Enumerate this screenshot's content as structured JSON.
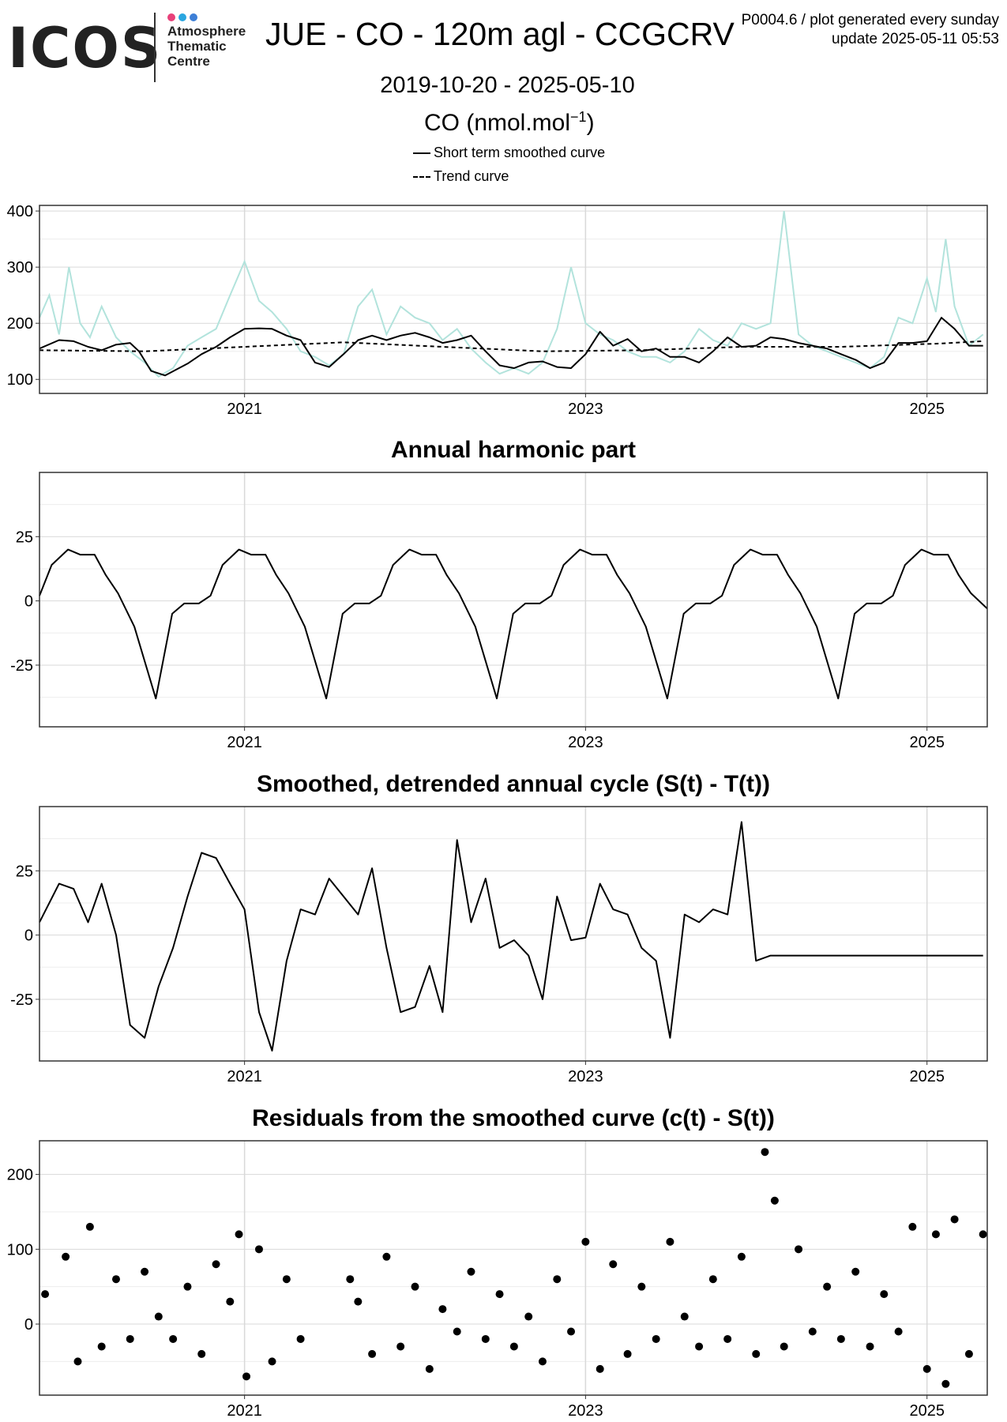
{
  "header": {
    "logo": "ICOS",
    "logo_subtitle": [
      "Atmosphere",
      "Thematic",
      "Centre"
    ],
    "title": "JUE - CO - 120m agl - CCGCRV",
    "info_line1": "P0004.6 / plot generated every sunday",
    "info_line2": "update  2025-05-11 05:53",
    "date_range": "2019-10-20 - 2025-05-10",
    "unit_label": "CO (nmol.mol",
    "unit_sup": "−1",
    "unit_close": ")",
    "legend": [
      {
        "label": "Short term smoothed curve",
        "style": "solid"
      },
      {
        "label": "Trend curve",
        "style": "dashed"
      }
    ]
  },
  "colors": {
    "raw": "#b2e3dc",
    "curve": "#000000",
    "grid_major": "#d9d9d9",
    "grid_minor": "#ededed",
    "logo_dots": [
      "#e8417a",
      "#2aa6e0",
      "#3d7fd6"
    ]
  },
  "chart_data": [
    {
      "type": "line",
      "title": "",
      "x_ticks": [
        "2021",
        "2023",
        "2025"
      ],
      "xlim": [
        "2019-10-20",
        "2025-05-10"
      ],
      "ylim": [
        75,
        410
      ],
      "y_ticks": [
        100,
        200,
        300,
        400
      ],
      "grid": true,
      "series": [
        {
          "name": "raw",
          "style": "area-line",
          "x": [
            "2019-10-20",
            "2019-11-10",
            "2019-12-01",
            "2019-12-22",
            "2020-01-15",
            "2020-02-05",
            "2020-03-01",
            "2020-04-01",
            "2020-05-01",
            "2020-06-01",
            "2020-07-01",
            "2020-08-01",
            "2020-09-01",
            "2020-10-01",
            "2020-11-01",
            "2020-12-01",
            "2021-01-01",
            "2021-02-01",
            "2021-03-01",
            "2021-04-01",
            "2021-05-01",
            "2021-06-01",
            "2021-07-01",
            "2021-08-01",
            "2021-09-01",
            "2021-10-01",
            "2021-11-01",
            "2021-12-01",
            "2022-01-01",
            "2022-02-01",
            "2022-03-01",
            "2022-04-01",
            "2022-05-01",
            "2022-06-01",
            "2022-07-01",
            "2022-08-01",
            "2022-09-01",
            "2022-10-01",
            "2022-11-01",
            "2022-12-01",
            "2023-01-01",
            "2023-02-01",
            "2023-03-01",
            "2023-04-01",
            "2023-05-01",
            "2023-06-01",
            "2023-07-01",
            "2023-08-01",
            "2023-09-01",
            "2023-10-01",
            "2023-11-01",
            "2023-12-01",
            "2024-01-01",
            "2024-02-01",
            "2024-03-01",
            "2024-04-01",
            "2024-05-01",
            "2024-06-01",
            "2024-07-01",
            "2024-08-01",
            "2024-09-01",
            "2024-10-01",
            "2024-11-01",
            "2024-12-01",
            "2025-01-01",
            "2025-01-20",
            "2025-02-10",
            "2025-03-01",
            "2025-04-01",
            "2025-05-01"
          ],
          "values": [
            210,
            250,
            180,
            300,
            200,
            175,
            230,
            175,
            150,
            130,
            105,
            120,
            160,
            175,
            190,
            250,
            310,
            240,
            220,
            190,
            150,
            140,
            125,
            145,
            230,
            260,
            180,
            230,
            210,
            200,
            170,
            190,
            155,
            130,
            110,
            120,
            110,
            130,
            190,
            300,
            200,
            180,
            170,
            150,
            140,
            140,
            130,
            150,
            190,
            170,
            160,
            200,
            190,
            200,
            400,
            180,
            160,
            150,
            140,
            130,
            120,
            140,
            210,
            200,
            280,
            220,
            350,
            230,
            160,
            180
          ]
        },
        {
          "name": "Short term smoothed curve",
          "style": "solid",
          "x": [
            "2019-10-20",
            "2019-12-01",
            "2020-01-01",
            "2020-02-01",
            "2020-03-01",
            "2020-04-01",
            "2020-05-01",
            "2020-05-20",
            "2020-06-15",
            "2020-07-15",
            "2020-09-01",
            "2020-10-01",
            "2020-11-01",
            "2020-12-01",
            "2021-01-01",
            "2021-02-01",
            "2021-03-01",
            "2021-04-01",
            "2021-05-01",
            "2021-06-01",
            "2021-07-01",
            "2021-08-01",
            "2021-09-01",
            "2021-10-01",
            "2021-11-01",
            "2021-12-01",
            "2022-01-01",
            "2022-02-01",
            "2022-03-01",
            "2022-04-01",
            "2022-05-01",
            "2022-06-01",
            "2022-07-01",
            "2022-08-01",
            "2022-09-01",
            "2022-10-01",
            "2022-11-01",
            "2022-12-01",
            "2023-01-01",
            "2023-02-01",
            "2023-03-01",
            "2023-04-01",
            "2023-05-01",
            "2023-06-01",
            "2023-07-01",
            "2023-08-01",
            "2023-09-01",
            "2023-10-01",
            "2023-11-01",
            "2023-12-01",
            "2024-01-01",
            "2024-02-01",
            "2024-03-01",
            "2024-04-01",
            "2024-05-01",
            "2024-06-01",
            "2024-07-01",
            "2024-08-01",
            "2024-09-01",
            "2024-10-01",
            "2024-11-01",
            "2024-12-01",
            "2025-01-01",
            "2025-02-01",
            "2025-03-01",
            "2025-04-01",
            "2025-05-01"
          ],
          "values": [
            155,
            170,
            168,
            158,
            152,
            162,
            165,
            150,
            115,
            107,
            128,
            145,
            158,
            175,
            190,
            191,
            190,
            178,
            170,
            130,
            122,
            145,
            170,
            178,
            170,
            178,
            183,
            175,
            165,
            170,
            178,
            150,
            125,
            120,
            130,
            132,
            122,
            120,
            145,
            185,
            160,
            172,
            150,
            155,
            140,
            140,
            130,
            150,
            175,
            158,
            160,
            175,
            172,
            165,
            160,
            155,
            145,
            135,
            120,
            130,
            165,
            165,
            168,
            210,
            190,
            160,
            160
          ]
        },
        {
          "name": "Trend curve",
          "style": "dashed",
          "x": [
            "2019-10-20",
            "2020-06-01",
            "2021-01-01",
            "2021-08-01",
            "2022-03-01",
            "2022-10-01",
            "2023-05-01",
            "2023-12-01",
            "2024-07-01",
            "2025-02-01",
            "2025-05-01"
          ],
          "values": [
            152,
            150,
            158,
            166,
            158,
            150,
            152,
            158,
            158,
            164,
            168
          ]
        }
      ]
    },
    {
      "type": "line",
      "title": "Annual harmonic part",
      "x_ticks": [
        "2021",
        "2023",
        "2025"
      ],
      "xlim": [
        "2019-10-20",
        "2025-05-10"
      ],
      "ylim": [
        -49,
        50
      ],
      "y_ticks": [
        25,
        0,
        -25
      ],
      "grid": true,
      "series": [
        {
          "name": "",
          "style": "solid",
          "x": [
            "2019-10-20",
            "2019-11-15",
            "2019-12-20",
            "2020-01-15",
            "2020-02-15",
            "2020-03-10",
            "2020-04-05",
            "2020-05-10",
            "2020-06-25",
            "2020-07-30",
            "2020-08-25",
            "2020-09-25",
            "2020-10-20",
            "2020-11-15",
            "2020-12-20",
            "2021-01-15",
            "2021-02-15",
            "2021-03-10",
            "2021-04-05",
            "2021-05-10",
            "2021-06-25",
            "2021-07-30",
            "2021-08-25",
            "2021-09-25",
            "2021-10-20",
            "2021-11-15",
            "2021-12-20",
            "2022-01-15",
            "2022-02-15",
            "2022-03-10",
            "2022-04-05",
            "2022-05-10",
            "2022-06-25",
            "2022-07-30",
            "2022-08-25",
            "2022-09-25",
            "2022-10-20",
            "2022-11-15",
            "2022-12-20",
            "2023-01-15",
            "2023-02-15",
            "2023-03-10",
            "2023-04-05",
            "2023-05-10",
            "2023-06-25",
            "2023-07-30",
            "2023-08-25",
            "2023-09-25",
            "2023-10-20",
            "2023-11-15",
            "2023-12-20",
            "2024-01-15",
            "2024-02-15",
            "2024-03-10",
            "2024-04-05",
            "2024-05-10",
            "2024-06-25",
            "2024-07-30",
            "2024-08-25",
            "2024-09-25",
            "2024-10-20",
            "2024-11-15",
            "2024-12-20",
            "2025-01-15",
            "2025-02-15",
            "2025-03-10",
            "2025-04-05",
            "2025-05-10"
          ],
          "values": [
            2,
            14,
            20,
            18,
            18,
            10,
            3,
            -10,
            -38,
            -5,
            -1,
            -1,
            2,
            14,
            20,
            18,
            18,
            10,
            3,
            -10,
            -38,
            -5,
            -1,
            -1,
            2,
            14,
            20,
            18,
            18,
            10,
            3,
            -10,
            -38,
            -5,
            -1,
            -1,
            2,
            14,
            20,
            18,
            18,
            10,
            3,
            -10,
            -38,
            -5,
            -1,
            -1,
            2,
            14,
            20,
            18,
            18,
            10,
            3,
            -10,
            -38,
            -5,
            -1,
            -1,
            2,
            14,
            20,
            18,
            18,
            10,
            3,
            -3
          ]
        }
      ]
    },
    {
      "type": "line",
      "title": "Smoothed, detrended annual cycle (S(t) - T(t))",
      "x_ticks": [
        "2021",
        "2023",
        "2025"
      ],
      "xlim": [
        "2019-10-20",
        "2025-05-10"
      ],
      "ylim": [
        -49,
        50
      ],
      "y_ticks": [
        25,
        0,
        -25
      ],
      "grid": true,
      "series": [
        {
          "name": "",
          "style": "solid",
          "x": [
            "2019-10-20",
            "2019-12-01",
            "2020-01-01",
            "2020-02-01",
            "2020-03-01",
            "2020-04-01",
            "2020-05-01",
            "2020-06-01",
            "2020-07-01",
            "2020-08-01",
            "2020-09-01",
            "2020-10-01",
            "2020-11-01",
            "2020-12-01",
            "2021-01-01",
            "2021-02-01",
            "2021-03-01",
            "2021-04-01",
            "2021-05-01",
            "2021-06-01",
            "2021-07-01",
            "2021-08-01",
            "2021-09-01",
            "2021-10-01",
            "2021-11-01",
            "2021-12-01",
            "2022-01-01",
            "2022-02-01",
            "2022-03-01",
            "2022-04-01",
            "2022-05-01",
            "2022-06-01",
            "2022-07-01",
            "2022-08-01",
            "2022-09-01",
            "2022-10-01",
            "2022-11-01",
            "2022-12-01",
            "2023-01-01",
            "2023-02-01",
            "2023-03-01",
            "2023-04-01",
            "2023-05-01",
            "2023-06-01",
            "2023-07-01",
            "2023-08-01",
            "2023-09-01",
            "2023-10-01",
            "2023-11-01",
            "2023-12-01",
            "2024-01-01",
            "2024-02-01",
            "2024-03-01",
            "2024-04-01",
            "2024-05-01",
            "2024-06-01",
            "2024-07-01",
            "2024-08-01",
            "2024-09-01",
            "2024-10-01",
            "2024-11-01",
            "2024-12-01",
            "2025-01-01",
            "2025-02-01",
            "2025-03-01",
            "2025-04-01",
            "2025-05-01"
          ],
          "values": [
            5,
            20,
            18,
            5,
            20,
            0,
            -35,
            -40,
            -20,
            -5,
            15,
            32,
            30,
            20,
            10,
            -30,
            -45,
            -10,
            10,
            8,
            22,
            15,
            8,
            26,
            -5,
            -30,
            -28,
            -12,
            -30,
            37,
            5,
            22,
            -5,
            -2,
            -8,
            -25,
            15,
            -2,
            -1,
            20,
            10,
            8,
            -5,
            -10,
            -40,
            8,
            5,
            10,
            8,
            44,
            -10,
            -8,
            -8,
            -8,
            -8,
            -8,
            -8,
            -8,
            -8,
            -8,
            -8,
            -8,
            -8,
            -8,
            -8,
            -8,
            -8
          ]
        }
      ]
    },
    {
      "type": "scatter",
      "title": "Residuals from the smoothed curve (c(t) - S(t))",
      "x_ticks": [
        "2021",
        "2023",
        "2025"
      ],
      "xlim": [
        "2019-10-20",
        "2025-05-10"
      ],
      "ylim": [
        -95,
        245
      ],
      "y_ticks": [
        200,
        100,
        0
      ],
      "grid": true,
      "series": [
        {
          "name": "",
          "style": "points",
          "x": [
            "2019-11-01",
            "2019-12-15",
            "2020-01-10",
            "2020-02-05",
            "2020-03-01",
            "2020-04-01",
            "2020-05-01",
            "2020-06-01",
            "2020-07-01",
            "2020-08-01",
            "2020-09-01",
            "2020-10-01",
            "2020-11-01",
            "2020-12-01",
            "2020-12-20",
            "2021-01-05",
            "2021-02-01",
            "2021-03-01",
            "2021-04-01",
            "2021-05-01",
            "2021-08-15",
            "2021-09-01",
            "2021-10-01",
            "2021-11-01",
            "2021-12-01",
            "2022-01-01",
            "2022-02-01",
            "2022-03-01",
            "2022-04-01",
            "2022-05-01",
            "2022-06-01",
            "2022-07-01",
            "2022-08-01",
            "2022-09-01",
            "2022-10-01",
            "2022-11-01",
            "2022-12-01",
            "2023-01-01",
            "2023-02-01",
            "2023-03-01",
            "2023-04-01",
            "2023-05-01",
            "2023-06-01",
            "2023-07-01",
            "2023-08-01",
            "2023-09-01",
            "2023-10-01",
            "2023-11-01",
            "2023-12-01",
            "2024-01-01",
            "2024-01-20",
            "2024-02-10",
            "2024-03-01",
            "2024-04-01",
            "2024-05-01",
            "2024-06-01",
            "2024-07-01",
            "2024-08-01",
            "2024-09-01",
            "2024-10-01",
            "2024-11-01",
            "2024-12-01",
            "2025-01-01",
            "2025-01-20",
            "2025-02-10",
            "2025-03-01",
            "2025-04-01",
            "2025-05-01"
          ],
          "values": [
            40,
            90,
            -50,
            130,
            -30,
            60,
            -20,
            70,
            10,
            -20,
            50,
            -40,
            80,
            30,
            120,
            -70,
            100,
            -50,
            60,
            -20,
            60,
            30,
            -40,
            90,
            -30,
            50,
            -60,
            20,
            -10,
            70,
            -20,
            40,
            -30,
            10,
            -50,
            60,
            -10,
            110,
            -60,
            80,
            -40,
            50,
            -20,
            110,
            10,
            -30,
            60,
            -20,
            90,
            -40,
            230,
            165,
            -30,
            100,
            -10,
            50,
            -20,
            70,
            -30,
            40,
            -10,
            130,
            -60,
            120,
            -80,
            140,
            -40,
            120
          ]
        }
      ]
    }
  ]
}
